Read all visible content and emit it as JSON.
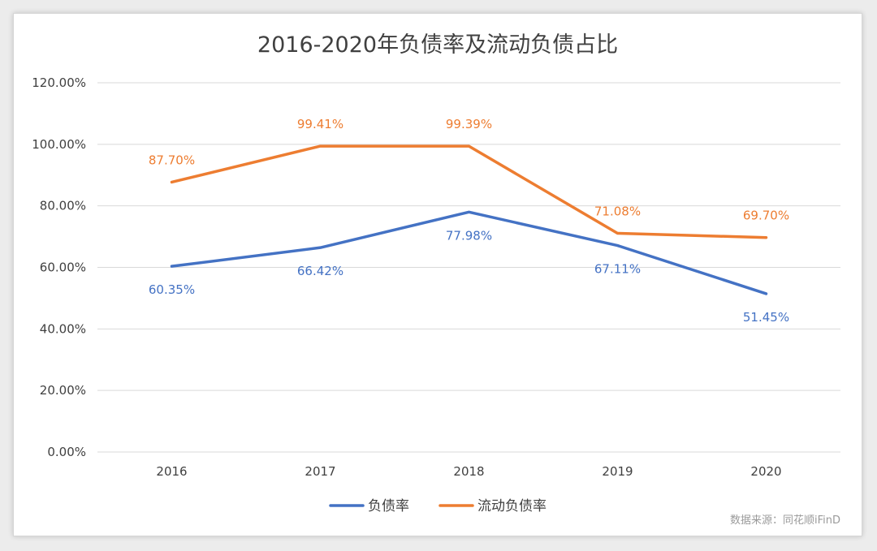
{
  "chart_data": {
    "type": "line",
    "title": "2016-2020年负债率及流动负债占比",
    "categories": [
      "2016",
      "2017",
      "2018",
      "2019",
      "2020"
    ],
    "series": [
      {
        "name": "负债率",
        "color": "#4472c4",
        "values": [
          60.35,
          66.42,
          77.98,
          67.11,
          51.45
        ],
        "labels": [
          "60.35%",
          "66.42%",
          "77.98%",
          "67.11%",
          "51.45%"
        ],
        "label_position": "below"
      },
      {
        "name": "流动负债率",
        "color": "#ed7d31",
        "values": [
          87.7,
          99.41,
          99.39,
          71.08,
          69.7
        ],
        "labels": [
          "87.70%",
          "99.41%",
          "99.39%",
          "71.08%",
          "69.70%"
        ],
        "label_position": "above"
      }
    ],
    "ylim": [
      0,
      120
    ],
    "yticks": [
      0,
      20,
      40,
      60,
      80,
      100,
      120
    ],
    "ytick_labels": [
      "0.00%",
      "20.00%",
      "40.00%",
      "60.00%",
      "80.00%",
      "100.00%",
      "120.00%"
    ],
    "grid": true,
    "legend_position": "bottom-center",
    "xlabel": "",
    "ylabel": ""
  },
  "source_note": "数据来源：同花顺iFinD"
}
